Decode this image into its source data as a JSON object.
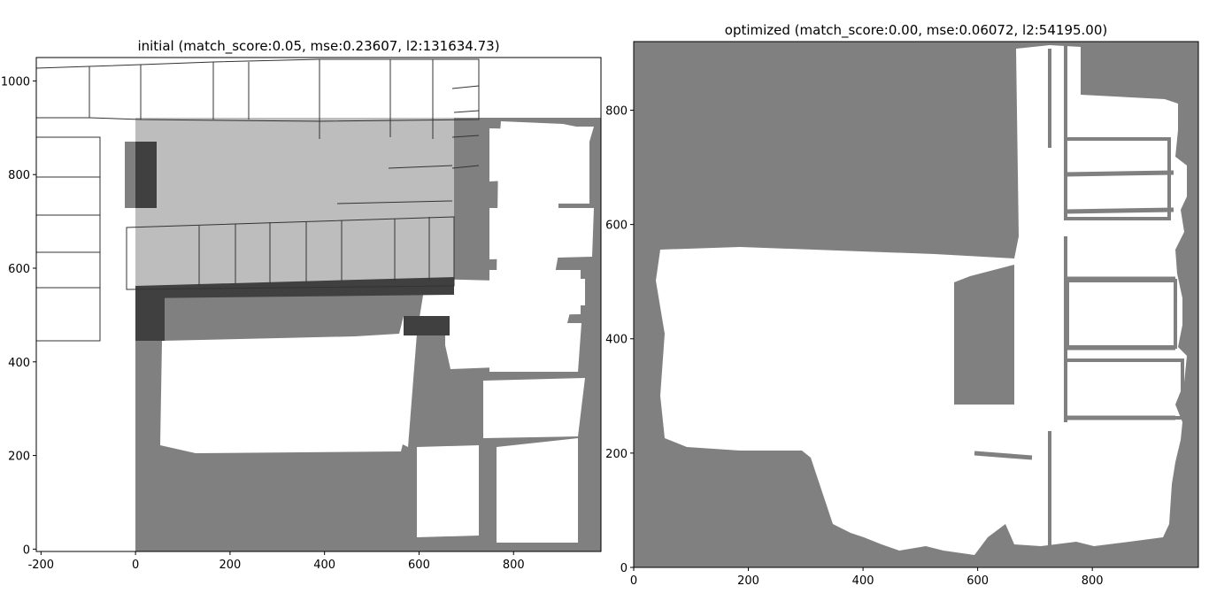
{
  "figure": {
    "background": "#ffffff",
    "free_color": "#ffffff",
    "occupied_color": "#808080",
    "overlay_light_color": "#c0c0c0",
    "overlay_dark_color": "#404040",
    "wall_color": "#333333"
  },
  "chart_data": [
    {
      "type": "heatmap",
      "title": "initial (match_score:0.05, mse:0.23607, l2:131634.73)",
      "xlabel": "",
      "ylabel": "",
      "xlim": [
        -210,
        985
      ],
      "ylim": [
        -5,
        1050
      ],
      "xticks": [
        -200,
        0,
        200,
        400,
        600,
        800
      ],
      "yticks": [
        0,
        200,
        400,
        600,
        800,
        1000
      ],
      "grid": false
    },
    {
      "type": "heatmap",
      "title": "optimized (match_score:0.00, mse:0.06072, l2:54195.00)",
      "xlabel": "",
      "ylabel": "",
      "xlim": [
        0,
        985
      ],
      "ylim": [
        0,
        920
      ],
      "xticks": [
        0,
        200,
        400,
        600,
        800
      ],
      "yticks": [
        0,
        200,
        400,
        600,
        800
      ],
      "grid": false
    }
  ]
}
